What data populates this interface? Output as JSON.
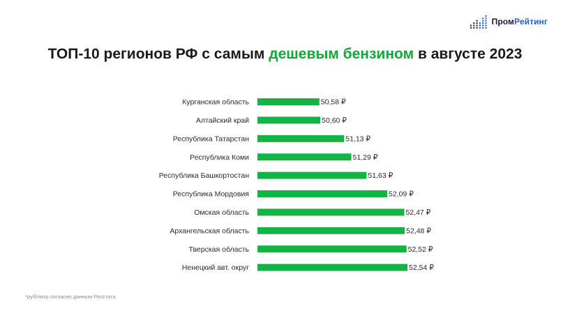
{
  "logo": {
    "name_part1": "Пром",
    "name_part2": "Рейтинг",
    "icon": "dot-bars-icon",
    "color": "#1f5fd6"
  },
  "title": {
    "before": "ТОП-10 регионов РФ с самым ",
    "highlight": "дешевым бензином",
    "after": " в августе 2023",
    "highlight_color": "#12a83a"
  },
  "footnote": "*руб/литр согласно данным Росстата",
  "chart_data": {
    "type": "bar",
    "orientation": "horizontal",
    "categories": [
      "Курганская область",
      "Алтайский край",
      "Республика Татарстан",
      "Республика Коми",
      "Республика Башкортостан",
      "Республика Мордовия",
      "Омская область",
      "Архангельская область",
      "Тверская область",
      "Ненецкий авт. округ"
    ],
    "values": [
      50.58,
      50.6,
      51.13,
      51.29,
      51.63,
      52.09,
      52.47,
      52.48,
      52.52,
      52.54
    ],
    "value_labels": [
      "50,58 ₽",
      "50,60 ₽",
      "51,13 ₽",
      "51,29 ₽",
      "51,63 ₽",
      "52,09 ₽",
      "52,47 ₽",
      "52,48 ₽",
      "52,52 ₽",
      "52,54 ₽"
    ],
    "xlim": [
      49.2,
      52.54
    ],
    "bar_color": "#12b544",
    "grid": false,
    "legend": "none"
  }
}
